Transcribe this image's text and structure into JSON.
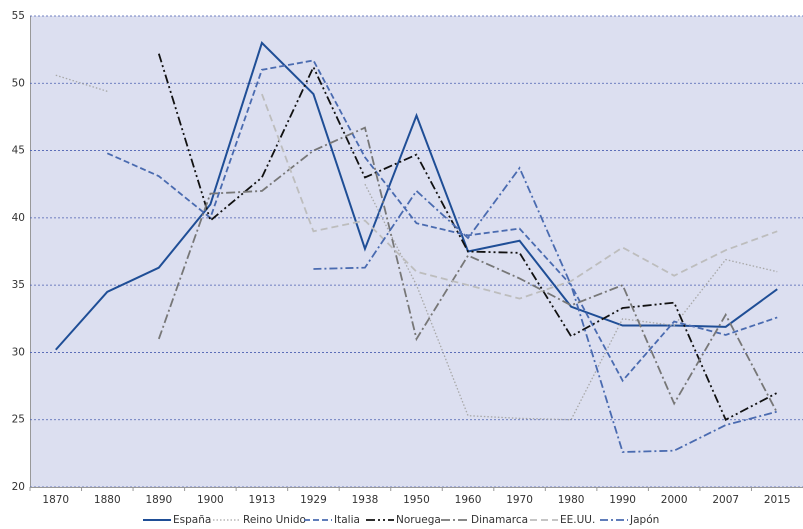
{
  "chart_data": {
    "type": "line",
    "categories": [
      "1870",
      "1880",
      "1890",
      "1900",
      "1913",
      "1929",
      "1938",
      "1950",
      "1960",
      "1970",
      "1980",
      "1990",
      "2000",
      "2007",
      "2015"
    ],
    "ylim": [
      20,
      55
    ],
    "yticks": [
      20,
      25,
      30,
      35,
      40,
      45,
      50,
      55
    ],
    "grid": true,
    "legend": "bottom",
    "series": [
      {
        "name": "España",
        "color": "#1f4e96",
        "values": [
          30.2,
          34.5,
          36.3,
          41,
          53,
          49.2,
          37.7,
          47.6,
          37.5,
          38.3,
          33.4,
          32,
          32,
          31.9,
          34.7
        ]
      },
      {
        "name": "Reino Unido",
        "color": "#a8a8a8",
        "values": [
          50.6,
          49.4,
          null,
          null,
          null,
          null,
          42.5,
          35,
          25.3,
          25.1,
          25,
          32.5,
          32,
          36.9,
          36
        ]
      },
      {
        "name": "Italia",
        "color": "#4a6bb0",
        "values": [
          null,
          44.8,
          43.1,
          40,
          51,
          51.7,
          44.5,
          39.6,
          38.7,
          39.2,
          35,
          27.9,
          32.3,
          31.3,
          32.6
        ]
      },
      {
        "name": "Noruega",
        "color": "#111111",
        "values": [
          null,
          null,
          52.2,
          39.8,
          43,
          51.2,
          43,
          44.7,
          37.5,
          37.4,
          31.2,
          33.3,
          33.7,
          25,
          27
        ]
      },
      {
        "name": "Dinamarca",
        "color": "#777777",
        "values": [
          null,
          null,
          31,
          41.8,
          42,
          45,
          46.7,
          31,
          37.2,
          35.5,
          33.5,
          35,
          26.2,
          32.8,
          25.5
        ]
      },
      {
        "name": "EE.UU.",
        "color": "#bdbdbd",
        "values": [
          null,
          null,
          null,
          null,
          49.2,
          39,
          39.8,
          36,
          35,
          34,
          35.3,
          37.8,
          35.7,
          37.6,
          39
        ]
      },
      {
        "name": "Japón",
        "color": "#4a6bb0",
        "values": [
          null,
          null,
          null,
          null,
          null,
          36.2,
          36.3,
          42,
          38.5,
          43.7,
          35,
          22.6,
          22.7,
          24.6,
          25.6
        ]
      }
    ]
  }
}
